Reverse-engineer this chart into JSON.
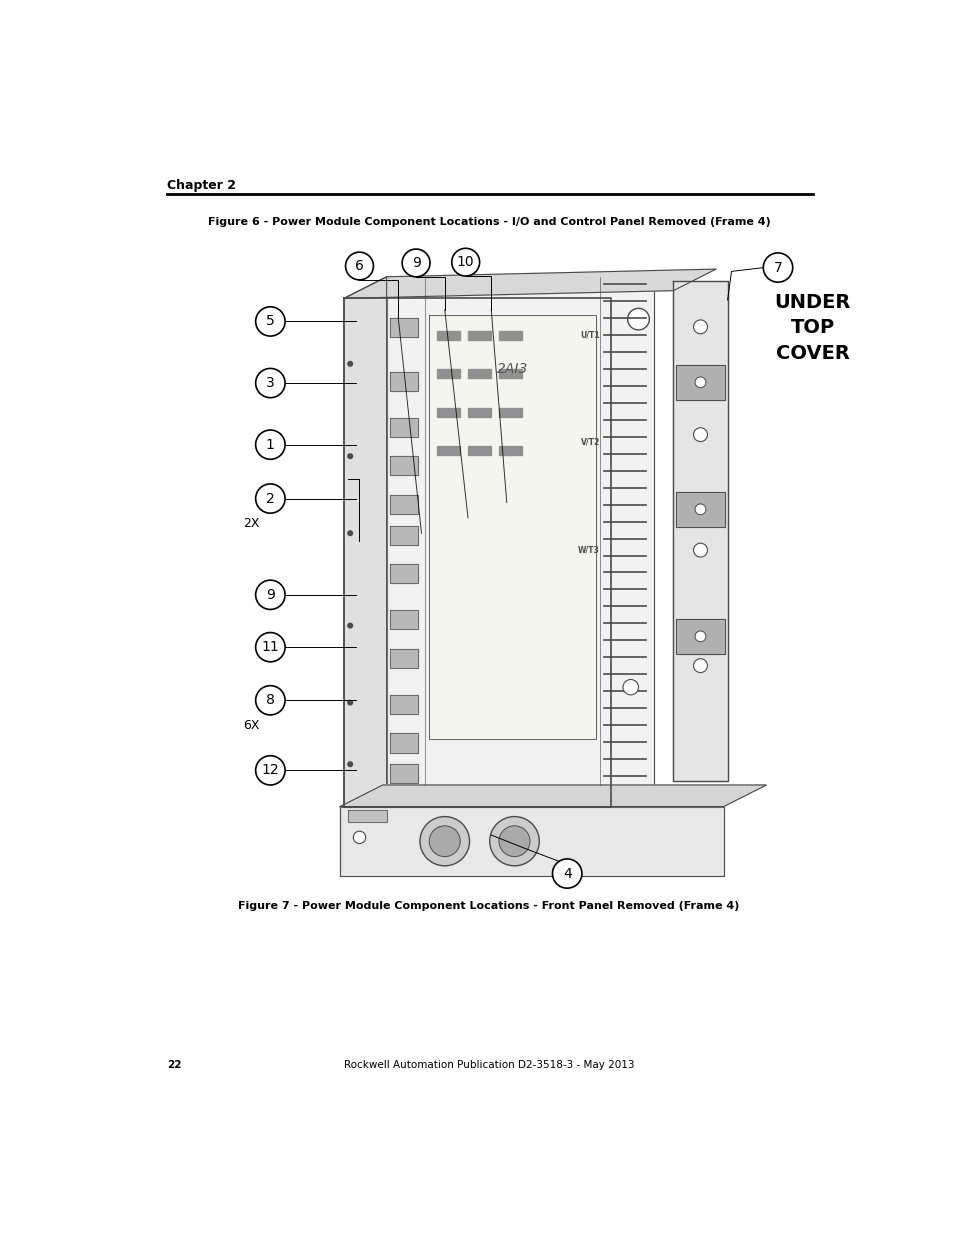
{
  "page_number": "22",
  "footer_text": "Rockwell Automation Publication D2-3518-3 - May 2013",
  "header_text": "Chapter 2",
  "figure6_title": "Figure 6 - Power Module Component Locations - I/O and Control Panel Removed (Frame 4)",
  "figure7_title": "Figure 7 - Power Module Component Locations - Front Panel Removed (Frame 4)",
  "under_top_cover_lines": [
    "UNDER",
    "TOP",
    "COVER"
  ],
  "callout_2x_label": "2X",
  "callout_6x_label": "6X",
  "bg_color": "#ffffff",
  "line_color": "#000000",
  "draw_color": "#4a4a4a",
  "light_gray": "#e8e8e8",
  "mid_gray": "#c8c8c8",
  "dark_gray": "#a0a0a0",
  "callout_fs": 10,
  "header_fs": 9,
  "title_fs": 8,
  "footer_fs": 7.5,
  "under_cover_fs": 14
}
